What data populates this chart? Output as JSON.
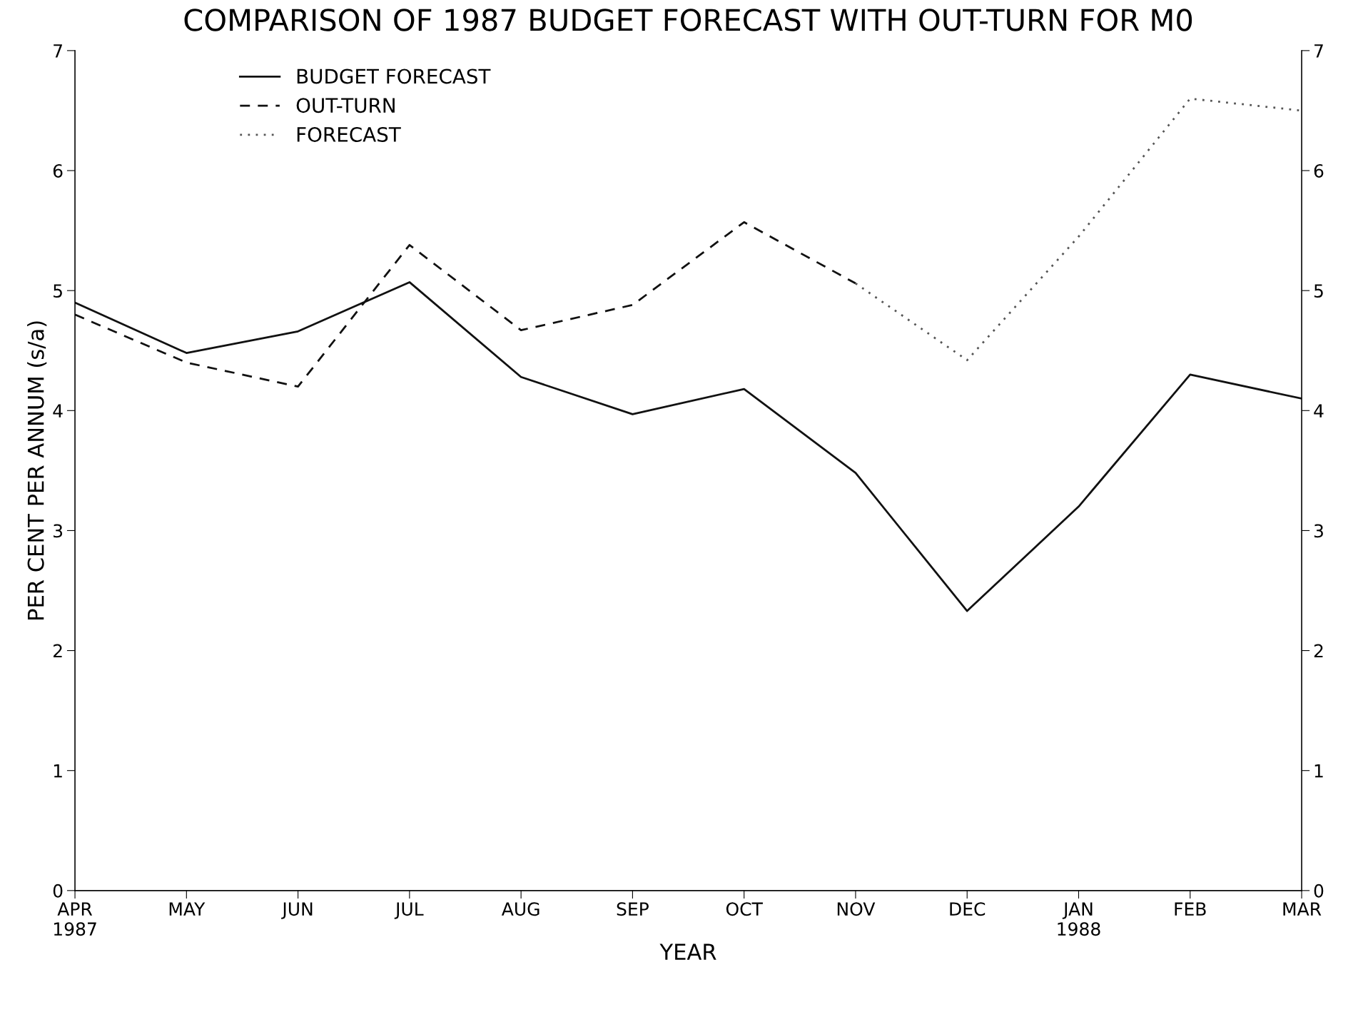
{
  "chart_data": {
    "type": "line",
    "title": "COMPARISON OF 1987 BUDGET FORECAST WITH OUT-TURN FOR M0",
    "xlabel": "YEAR",
    "ylabel": "PER CENT PER ANNUM (s/a)",
    "categories": [
      "APR\n1987",
      "MAY",
      "JUN",
      "JUL",
      "AUG",
      "SEP",
      "OCT",
      "NOV",
      "DEC",
      "JAN\n1988",
      "FEB",
      "MAR"
    ],
    "series": [
      {
        "name": "BUDGET FORECAST",
        "color": "#111111",
        "line_style": "solid",
        "values": [
          4.9,
          4.48,
          4.66,
          5.07,
          4.28,
          3.97,
          4.18,
          3.48,
          2.33,
          3.2,
          4.3,
          4.1
        ]
      },
      {
        "name": "OUT-TURN",
        "color": "#111111",
        "line_style": "dashed",
        "values": [
          4.8,
          4.4,
          4.2,
          5.38,
          4.67,
          4.88,
          5.57,
          5.06,
          null,
          null,
          null,
          null
        ]
      },
      {
        "name": "FORECAST",
        "color": "#555555",
        "line_style": "dotted",
        "values": [
          null,
          null,
          null,
          null,
          null,
          null,
          null,
          5.06,
          4.42,
          5.45,
          6.6,
          6.5
        ]
      }
    ],
    "ylim": [
      0,
      7
    ],
    "yticks": [
      0,
      1,
      2,
      3,
      4,
      5,
      6,
      7
    ],
    "y2lim": [
      0,
      7
    ],
    "y2ticks": [
      0,
      1,
      2,
      3,
      4,
      5,
      6,
      7
    ],
    "grid": false,
    "legend": "top left",
    "marker": "none"
  }
}
